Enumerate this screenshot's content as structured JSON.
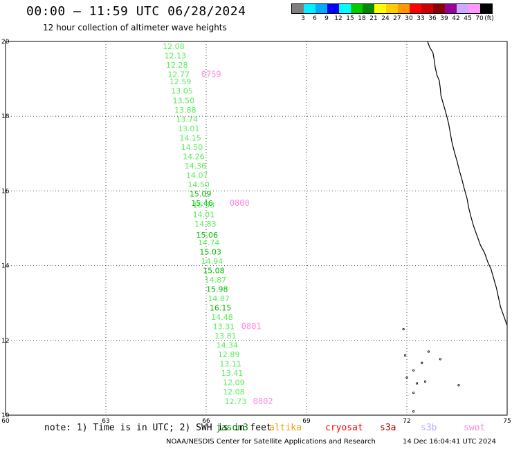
{
  "header": {
    "title": "00:00 – 11:59 UTC 06/28/2024",
    "subtitle": "12 hour collection of altimeter wave heights"
  },
  "legend": {
    "colors": [
      "#7f7f7f",
      "#00f0ff",
      "#00aaff",
      "#0000ff",
      "#00ffff",
      "#00cc00",
      "#008800",
      "#ffff00",
      "#ffcc00",
      "#ff9900",
      "#ff0000",
      "#cc0000",
      "#880000",
      "#990099",
      "#ccaaff",
      "#ff99ff",
      "#000000"
    ],
    "labels": [
      "3",
      "6",
      "9",
      "12",
      "15",
      "18",
      "21",
      "24",
      "27",
      "30",
      "33",
      "36",
      "39",
      "42",
      "45",
      "70"
    ],
    "unit": "(ft)"
  },
  "map": {
    "lat_labels": [
      "20",
      "18",
      "16",
      "14",
      "12",
      "10"
    ],
    "lon_labels": [
      "60",
      "63",
      "66",
      "69",
      "72",
      "75"
    ],
    "lat_range": [
      10,
      20
    ],
    "lon_range": [
      60,
      75
    ],
    "wave_heights": [
      {
        "lat": 19.8,
        "lon": 64.7,
        "text": "12.08",
        "color": "#55ee55"
      },
      {
        "lat": 19.55,
        "lon": 64.75,
        "text": "12.13",
        "color": "#55ee55"
      },
      {
        "lat": 19.3,
        "lon": 64.8,
        "text": "12.28",
        "color": "#55ee55"
      },
      {
        "lat": 19.05,
        "lon": 64.85,
        "text": "12.77",
        "color": "#55ee55"
      },
      {
        "lat": 18.85,
        "lon": 64.9,
        "text": "12.59",
        "color": "#55ee55"
      },
      {
        "lat": 18.6,
        "lon": 64.95,
        "text": "13.05",
        "color": "#55ee55"
      },
      {
        "lat": 18.35,
        "lon": 65.0,
        "text": "13.50",
        "color": "#55ee55"
      },
      {
        "lat": 18.1,
        "lon": 65.05,
        "text": "13.88",
        "color": "#55ee55"
      },
      {
        "lat": 17.85,
        "lon": 65.1,
        "text": "13.74",
        "color": "#55ee55"
      },
      {
        "lat": 17.6,
        "lon": 65.15,
        "text": "13.01",
        "color": "#55ee55"
      },
      {
        "lat": 17.35,
        "lon": 65.2,
        "text": "14.15",
        "color": "#55ee55"
      },
      {
        "lat": 17.1,
        "lon": 65.25,
        "text": "14.50",
        "color": "#55ee55"
      },
      {
        "lat": 16.85,
        "lon": 65.3,
        "text": "14.26",
        "color": "#55ee55"
      },
      {
        "lat": 16.6,
        "lon": 65.35,
        "text": "14.36",
        "color": "#55ee55"
      },
      {
        "lat": 16.35,
        "lon": 65.4,
        "text": "14.07",
        "color": "#55ee55"
      },
      {
        "lat": 16.1,
        "lon": 65.45,
        "text": "14.50",
        "color": "#55ee55"
      },
      {
        "lat": 15.85,
        "lon": 65.5,
        "text": "15.09",
        "color": "#00bb00"
      },
      {
        "lat": 15.6,
        "lon": 65.55,
        "text": "15.46",
        "color": "#00bb00"
      },
      {
        "lat": 15.55,
        "lon": 65.6,
        "text": "15.53",
        "color": "#55ee55"
      },
      {
        "lat": 15.3,
        "lon": 65.6,
        "text": "14.01",
        "color": "#55ee55"
      },
      {
        "lat": 15.05,
        "lon": 65.65,
        "text": "14.83",
        "color": "#55ee55"
      },
      {
        "lat": 14.75,
        "lon": 65.7,
        "text": "15.06",
        "color": "#00bb00"
      },
      {
        "lat": 14.55,
        "lon": 65.75,
        "text": "14.74",
        "color": "#55ee55"
      },
      {
        "lat": 14.3,
        "lon": 65.8,
        "text": "15.03",
        "color": "#00bb00"
      },
      {
        "lat": 14.05,
        "lon": 65.85,
        "text": "14.94",
        "color": "#55ee55"
      },
      {
        "lat": 13.8,
        "lon": 65.9,
        "text": "15.08",
        "color": "#00bb00"
      },
      {
        "lat": 13.55,
        "lon": 65.95,
        "text": "14.87",
        "color": "#55ee55"
      },
      {
        "lat": 13.3,
        "lon": 66.0,
        "text": "15.98",
        "color": "#00bb00"
      },
      {
        "lat": 13.05,
        "lon": 66.05,
        "text": "14.87",
        "color": "#55ee55"
      },
      {
        "lat": 12.8,
        "lon": 66.1,
        "text": "16.15",
        "color": "#00bb00"
      },
      {
        "lat": 12.55,
        "lon": 66.15,
        "text": "14.48",
        "color": "#55ee55"
      },
      {
        "lat": 12.3,
        "lon": 66.2,
        "text": "13.31",
        "color": "#55ee55"
      },
      {
        "lat": 12.05,
        "lon": 66.25,
        "text": "13.81",
        "color": "#55ee55"
      },
      {
        "lat": 11.8,
        "lon": 66.3,
        "text": "14.34",
        "color": "#55ee55"
      },
      {
        "lat": 11.55,
        "lon": 66.35,
        "text": "12.89",
        "color": "#55ee55"
      },
      {
        "lat": 11.3,
        "lon": 66.4,
        "text": "13.11",
        "color": "#55ee55"
      },
      {
        "lat": 11.05,
        "lon": 66.45,
        "text": "13.41",
        "color": "#55ee55"
      },
      {
        "lat": 10.8,
        "lon": 66.5,
        "text": "12.09",
        "color": "#55ee55"
      },
      {
        "lat": 10.55,
        "lon": 66.5,
        "text": "12.08",
        "color": "#55ee55"
      },
      {
        "lat": 10.3,
        "lon": 66.55,
        "text": "12.73",
        "color": "#55ee55"
      }
    ],
    "time_labels": [
      {
        "lat": 19.05,
        "lon": 65.85,
        "text": "0759"
      },
      {
        "lat": 15.6,
        "lon": 66.7,
        "text": "0800"
      },
      {
        "lat": 12.3,
        "lon": 67.05,
        "text": "0801"
      },
      {
        "lat": 10.3,
        "lon": 67.4,
        "text": "0802"
      }
    ],
    "time_label_color": "#ff88dd",
    "coast_color": "#000000"
  },
  "footer": {
    "note": "note: 1) Time is in UTC; 2) SWH is in feet",
    "satellites": [
      {
        "name": "jason3",
        "color": "#008800"
      },
      {
        "name": "altika",
        "color": "#ff9900"
      },
      {
        "name": "cryosat",
        "color": "#ff0000"
      },
      {
        "name": "s3a",
        "color": "#aa0000"
      },
      {
        "name": "s3b",
        "color": "#bbaaff"
      },
      {
        "name": "swot",
        "color": "#ff88dd"
      }
    ],
    "credit": "NOAA/NESDIS Center for Satellite Applications and Research",
    "timestamp": "14 Dec 16:04:41 UTC 2024"
  }
}
